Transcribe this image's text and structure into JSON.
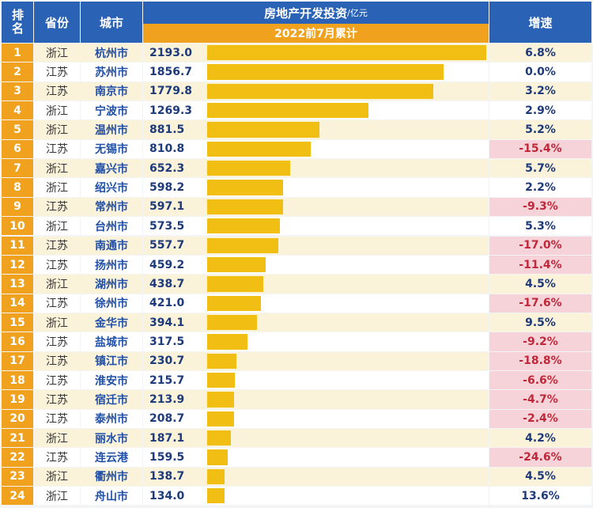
{
  "header": {
    "rank": "排名",
    "province": "省份",
    "city": "城市",
    "metric": "房地产开发投资",
    "unit": "/亿元",
    "period": "2022前7月累计",
    "growth": "增速"
  },
  "colors": {
    "header_blue": "#2a63b6",
    "accent_orange": "#f0a21e",
    "bar_gold": "#f1be14",
    "row_light": "#fbf2da",
    "row_white": "#ffffff",
    "negative_bg": "#f6d3d8",
    "negative_text": "#c0283a",
    "positive_text": "#1d3a7a"
  },
  "chart_data": {
    "type": "bar",
    "orientation": "horizontal",
    "title": "房地产开发投资/亿元",
    "subtitle": "2022前7月累计",
    "categories": [
      "杭州市",
      "苏州市",
      "南京市",
      "宁波市",
      "温州市",
      "无锡市",
      "嘉兴市",
      "绍兴市",
      "常州市",
      "台州市",
      "南通市",
      "扬州市",
      "湖州市",
      "徐州市",
      "金华市",
      "盐城市",
      "镇江市",
      "淮安市",
      "宿迁市",
      "泰州市",
      "丽水市",
      "连云港",
      "衢州市",
      "舟山市"
    ],
    "ranks": [
      "1",
      "2",
      "3",
      "4",
      "5",
      "6",
      "7",
      "8",
      "9",
      "10",
      "11",
      "12",
      "13",
      "14",
      "15",
      "16",
      "17",
      "18",
      "19",
      "20",
      "21",
      "22",
      "23",
      "24"
    ],
    "provinces": [
      "浙江",
      "江苏",
      "江苏",
      "浙江",
      "浙江",
      "江苏",
      "浙江",
      "浙江",
      "江苏",
      "浙江",
      "江苏",
      "江苏",
      "浙江",
      "江苏",
      "浙江",
      "江苏",
      "江苏",
      "江苏",
      "江苏",
      "江苏",
      "浙江",
      "江苏",
      "浙江",
      "浙江"
    ],
    "values": [
      2193.0,
      1856.7,
      1779.8,
      1269.3,
      881.5,
      810.8,
      652.3,
      598.2,
      597.1,
      573.5,
      557.7,
      459.2,
      438.7,
      421.0,
      394.1,
      317.5,
      230.7,
      215.7,
      213.9,
      208.7,
      187.1,
      159.5,
      138.7,
      134.0
    ],
    "value_labels": [
      "2193.0",
      "1856.7",
      "1779.8",
      "1269.3",
      "881.5",
      "810.8",
      "652.3",
      "598.2",
      "597.1",
      "573.5",
      "557.7",
      "459.2",
      "438.7",
      "421.0",
      "394.1",
      "317.5",
      "230.7",
      "215.7",
      "213.9",
      "208.7",
      "187.1",
      "159.5",
      "138.7",
      "134.0"
    ],
    "growth": [
      6.8,
      0.0,
      3.2,
      2.9,
      5.2,
      -15.4,
      5.7,
      2.2,
      -9.3,
      5.3,
      -17.0,
      -11.4,
      4.5,
      -17.6,
      9.5,
      -9.2,
      -18.8,
      -6.6,
      -4.7,
      -2.4,
      4.2,
      -24.6,
      4.5,
      13.6
    ],
    "growth_labels": [
      "6.8%",
      "0.0%",
      "3.2%",
      "2.9%",
      "5.2%",
      "-15.4%",
      "5.7%",
      "2.2%",
      "-9.3%",
      "5.3%",
      "-17.0%",
      "-11.4%",
      "4.5%",
      "-17.6%",
      "9.5%",
      "-9.2%",
      "-18.8%",
      "-6.6%",
      "-4.7%",
      "-2.4%",
      "4.2%",
      "-24.6%",
      "4.5%",
      "13.6%"
    ],
    "xlim": [
      0,
      2193.0
    ]
  }
}
